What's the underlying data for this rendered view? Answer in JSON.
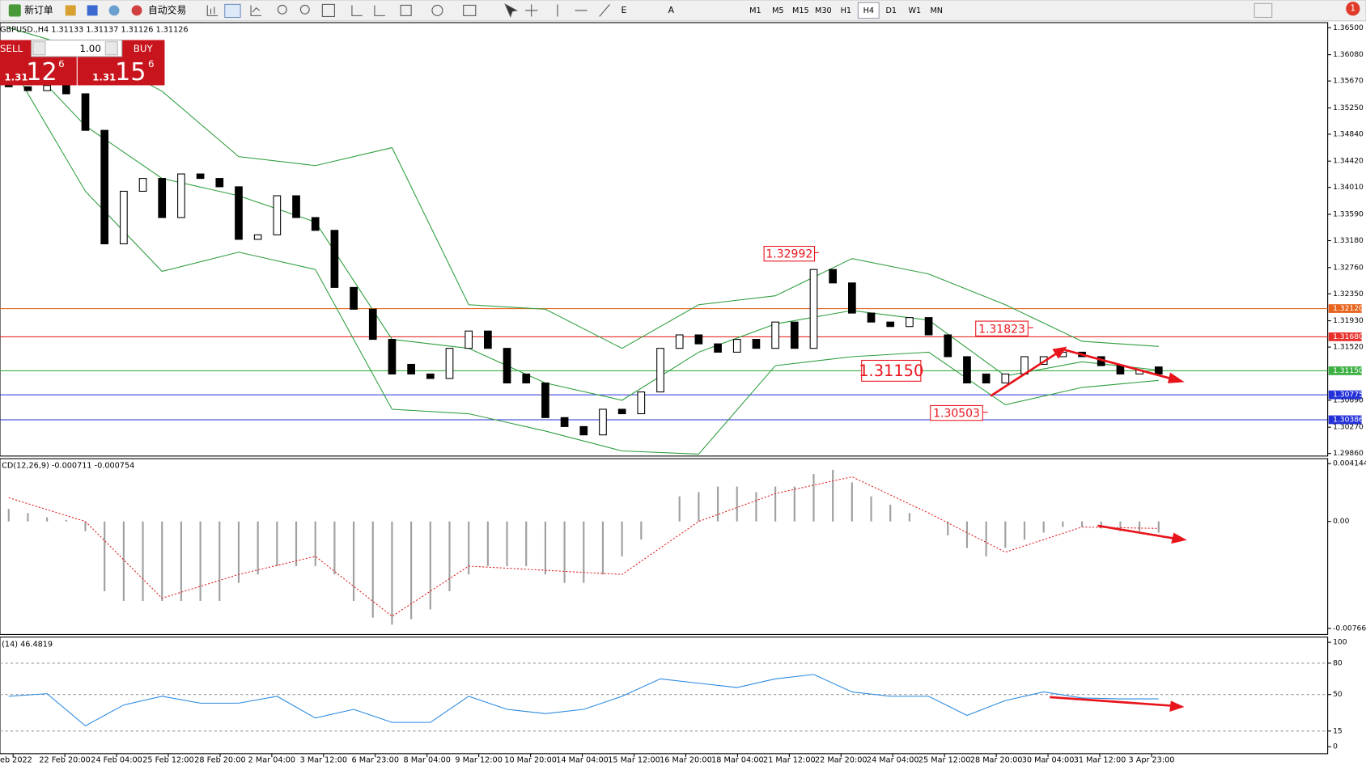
{
  "toolbar": {
    "new_order": "新订单",
    "auto_trading": "自动交易",
    "timeframes": [
      "M1",
      "M5",
      "M15",
      "M30",
      "H1",
      "H4",
      "D1",
      "W1",
      "MN"
    ],
    "active_timeframe": "H4",
    "notification": "1"
  },
  "trade_panel": {
    "sell": "SELL",
    "lots": "1.00",
    "buy": "BUY",
    "bid_big": "1.31",
    "bid_main": "12",
    "bid_frac": "6",
    "ask_big": "1.31",
    "ask_main": "15",
    "ask_frac": "6"
  },
  "time_labels": [
    "eb 2022",
    "22 Feb 20:00",
    "24 Feb 04:00",
    "25 Feb 12:00",
    "28 Feb 20:00",
    "2 Mar 04:00",
    "3 Mar 12:00",
    "6 Mar 23:00",
    "8 Mar 04:00",
    "9 Mar 12:00",
    "10 Mar 20:00",
    "14 Mar 04:00",
    "15 Mar 12:00",
    "16 Mar 20:00",
    "18 Mar 04:00",
    "21 Mar 12:00",
    "22 Mar 20:00",
    "24 Mar 04:00",
    "25 Mar 12:00",
    "28 Mar 20:00",
    "30 Mar 04:00",
    "31 Mar 12:00",
    "3 Apr 23:00"
  ],
  "chart_data": [
    {
      "type": "candlestick",
      "title": "GBPUSD.,H4  1.31133 1.31137 1.31126 1.31126",
      "open": [
        1.3565,
        1.3558,
        1.3552,
        1.356,
        1.3547,
        1.349,
        1.3313,
        1.3395,
        1.3415,
        1.3354,
        1.3422,
        1.3415,
        1.3402,
        1.332,
        1.3327,
        1.3388,
        1.3354,
        1.3334,
        1.3245,
        1.3211,
        1.3164,
        1.3125,
        1.311,
        1.3103,
        1.315,
        1.3177,
        1.315,
        1.311,
        1.3096,
        1.3042,
        1.3028,
        1.3015,
        1.3055,
        1.3048,
        1.3082,
        1.315,
        1.3171,
        1.3157,
        1.3144,
        1.3164,
        1.315,
        1.3191,
        1.315,
        1.3273,
        1.3252,
        1.3205,
        1.3191,
        1.3184,
        1.3198,
        1.3171,
        1.3137,
        1.311,
        1.3096,
        1.311,
        1.3125,
        1.3137,
        1.3144,
        1.3137,
        1.3123,
        1.311,
        1.3121
      ],
      "close": [
        1.3558,
        1.3552,
        1.356,
        1.3547,
        1.349,
        1.3313,
        1.3395,
        1.3415,
        1.3354,
        1.3422,
        1.3415,
        1.3402,
        1.332,
        1.3327,
        1.3388,
        1.3354,
        1.3334,
        1.3245,
        1.3211,
        1.3164,
        1.311,
        1.311,
        1.3103,
        1.315,
        1.3177,
        1.315,
        1.3096,
        1.3096,
        1.3042,
        1.3028,
        1.3015,
        1.3055,
        1.3048,
        1.3082,
        1.315,
        1.3171,
        1.3157,
        1.3144,
        1.3164,
        1.315,
        1.3191,
        1.315,
        1.3273,
        1.3252,
        1.3205,
        1.3191,
        1.3184,
        1.3198,
        1.3171,
        1.3137,
        1.3096,
        1.3096,
        1.311,
        1.3137,
        1.3137,
        1.3144,
        1.3137,
        1.3123,
        1.311,
        1.3116,
        1.311
      ],
      "bands": {
        "color": "#2e9e3e",
        "x": [
          0,
          4,
          8,
          12,
          16,
          20,
          24,
          28,
          32,
          36,
          40,
          44,
          48,
          52,
          56,
          60
        ],
        "upper": [
          1.365,
          1.3615,
          1.3551,
          1.3449,
          1.3435,
          1.3463,
          1.3218,
          1.3211,
          1.315,
          1.3218,
          1.3232,
          1.329,
          1.3266,
          1.3218,
          1.3161,
          1.3153
        ],
        "middle": [
          1.3623,
          1.3497,
          1.3415,
          1.3388,
          1.3347,
          1.3164,
          1.315,
          1.3096,
          1.3069,
          1.3144,
          1.3188,
          1.3209,
          1.3194,
          1.3107,
          1.3129,
          1.3116
        ],
        "lower": [
          1.3598,
          1.3395,
          1.327,
          1.33,
          1.3273,
          1.3055,
          1.3048,
          1.3021,
          1.299,
          1.2985,
          1.3123,
          1.3137,
          1.3144,
          1.3062,
          1.3089,
          1.31
        ]
      },
      "levels": [
        {
          "value": 1.3212,
          "label": "1.32120",
          "color": "#e8641e"
        },
        {
          "value": 1.3168,
          "label": "1.31680",
          "color": "#e8302a"
        },
        {
          "value": 1.3115,
          "label": "1.31150",
          "color": "#3cb043"
        },
        {
          "value": 1.30775,
          "label": "1.30775",
          "color": "#2430d8"
        },
        {
          "value": 1.30386,
          "label": "1.30386",
          "color": "#2430d8"
        }
      ],
      "annotations": [
        {
          "value": 1.32992,
          "label": "1.32992"
        },
        {
          "value": 1.31823,
          "label": "1.31823"
        },
        {
          "value": 1.3115,
          "label": "1.31150"
        },
        {
          "value": 1.30503,
          "label": "1.30503"
        }
      ],
      "ylim": [
        1.2982,
        1.3658
      ],
      "yticks": [
        {
          "value": 1.365,
          "label": "1.36500"
        },
        {
          "value": 1.3608,
          "label": "1.36080"
        },
        {
          "value": 1.3567,
          "label": "1.35670"
        },
        {
          "value": 1.3525,
          "label": "1.35250"
        },
        {
          "value": 1.3484,
          "label": "1.34840"
        },
        {
          "value": 1.3442,
          "label": "1.34420"
        },
        {
          "value": 1.3401,
          "label": "1.34010"
        },
        {
          "value": 1.3359,
          "label": "1.33590"
        },
        {
          "value": 1.3318,
          "label": "1.33180"
        },
        {
          "value": 1.3276,
          "label": "1.32760"
        },
        {
          "value": 1.3235,
          "label": "1.32350"
        },
        {
          "value": 1.3193,
          "label": "1.31930"
        },
        {
          "value": 1.3152,
          "label": "1.31520"
        },
        {
          "value": 1.3069,
          "label": "1.30690"
        },
        {
          "value": 1.3027,
          "label": "1.30270"
        },
        {
          "value": 1.2986,
          "label": "1.29860"
        }
      ]
    },
    {
      "type": "macd",
      "title": "CD(12,26,9) -0.000711 -0.000754",
      "color": "#a0a0a0",
      "signal_color": "#e02020",
      "values": [
        0.0009,
        0.0006,
        0.0003,
        0.0001,
        -0.0007,
        -0.005,
        -0.0057,
        -0.0057,
        -0.0057,
        -0.0057,
        -0.0057,
        -0.0057,
        -0.0044,
        -0.0038,
        -0.0032,
        -0.0032,
        -0.0032,
        -0.0038,
        -0.0057,
        -0.0069,
        -0.0074,
        -0.007,
        -0.0063,
        -0.005,
        -0.0038,
        -0.0032,
        -0.0032,
        -0.0032,
        -0.0038,
        -0.0044,
        -0.0044,
        -0.0038,
        -0.0025,
        -0.0013,
        0,
        0.0018,
        0.0021,
        0.0025,
        0.0025,
        0.0021,
        0.0025,
        0.0025,
        0.0034,
        0.0037,
        0.0028,
        0.0018,
        0.0012,
        0.0006,
        0,
        -0.001,
        -0.0019,
        -0.0025,
        -0.0019,
        -0.0013,
        -0.0008,
        -0.0004,
        -0.0004,
        -0.0005,
        -0.0007,
        -0.0007,
        -0.0008
      ],
      "signal": {
        "x": [
          0,
          4,
          8,
          12,
          16,
          20,
          24,
          28,
          32,
          36,
          40,
          44,
          48,
          52,
          56,
          60
        ],
        "values": [
          0.0017,
          0,
          -0.0055,
          -0.0038,
          -0.0025,
          -0.0068,
          -0.0032,
          -0.0035,
          -0.0038,
          0,
          0.002,
          0.0032,
          0.0006,
          -0.0022,
          -0.0004,
          -0.0005
        ]
      },
      "ylim": [
        -0.0081,
        0.0045
      ],
      "yticks": [
        0.004144,
        {
          "value": 0,
          "label": "0.00"
        },
        -0.007664
      ]
    },
    {
      "type": "line",
      "title": "(14) 46.4819",
      "color": "#2a8ae0",
      "x": [
        0,
        2,
        4,
        6,
        8,
        10,
        12,
        14,
        16,
        18,
        20,
        22,
        24,
        26,
        28,
        30,
        32,
        34,
        36,
        38,
        40,
        42,
        44,
        46,
        48,
        50,
        52,
        54,
        56,
        58,
        60
      ],
      "values": [
        48.3,
        50.8,
        20,
        40,
        48.3,
        41.7,
        41.7,
        48.3,
        27.5,
        35.8,
        23.3,
        23.3,
        48.3,
        35.8,
        31.7,
        35.8,
        48.3,
        65,
        60.8,
        56.7,
        65,
        69.2,
        52.5,
        48.3,
        48.3,
        30,
        44.2,
        52.5,
        46.7,
        45.8,
        45.8
      ],
      "levels": [
        80,
        50,
        15
      ],
      "ylim": [
        -6.7,
        105
      ],
      "yticks": [
        100,
        80,
        50,
        15,
        0
      ]
    }
  ]
}
